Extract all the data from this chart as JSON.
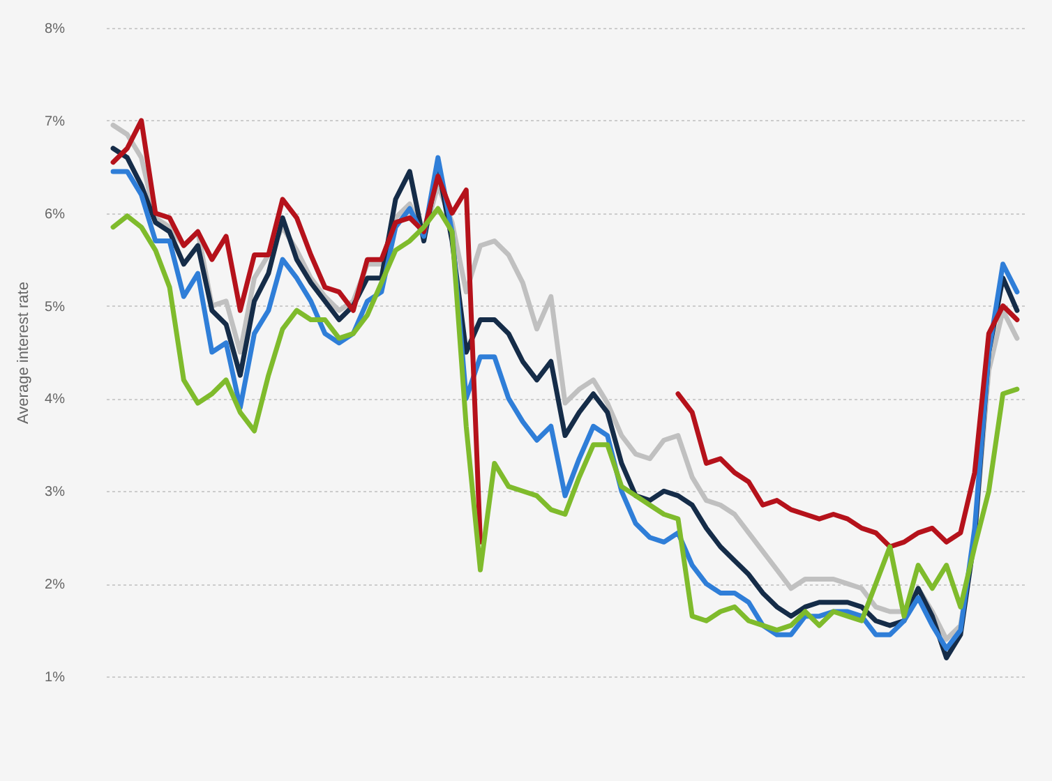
{
  "chart_data": {
    "type": "line",
    "ylabel": "Average interest rate",
    "categories": [
      null,
      null,
      null,
      null,
      null,
      null,
      null,
      null,
      null,
      null,
      null,
      null,
      null,
      null,
      null,
      null,
      null,
      null,
      null,
      null,
      null,
      null,
      null,
      null,
      null,
      null,
      null,
      null,
      null,
      null,
      null,
      null,
      null,
      null,
      null,
      null,
      null,
      null,
      null,
      null,
      null,
      null,
      null,
      null,
      null,
      null,
      null,
      null,
      null,
      null,
      null,
      null,
      null,
      null,
      null,
      null,
      null,
      null,
      null,
      null,
      null,
      null,
      null,
      null,
      null
    ],
    "series": [
      {
        "color": "#c0c0c0",
        "values": [
          6.95,
          6.85,
          6.6,
          5.95,
          5.85,
          5.65,
          5.8,
          5.0,
          5.05,
          4.5,
          5.3,
          5.55,
          5.85,
          5.6,
          5.3,
          5.1,
          4.95,
          5.05,
          5.45,
          5.45,
          5.95,
          6.1,
          5.75,
          6.3,
          5.9,
          5.15,
          5.65,
          5.7,
          5.55,
          5.25,
          4.75,
          5.1,
          3.95,
          4.1,
          4.2,
          3.95,
          3.6,
          3.4,
          3.35,
          3.55,
          3.6,
          3.15,
          2.9,
          2.85,
          2.75,
          2.55,
          2.35,
          2.15,
          1.95,
          2.05,
          2.05,
          2.05,
          2.0,
          1.95,
          1.75,
          1.7,
          1.7,
          1.95,
          1.7,
          1.4,
          1.55,
          2.5,
          4.3,
          4.95,
          4.65
        ]
      },
      {
        "color": "#152c48",
        "values": [
          6.7,
          6.6,
          6.3,
          5.9,
          5.8,
          5.45,
          5.65,
          4.95,
          4.8,
          4.25,
          5.05,
          5.35,
          5.95,
          5.5,
          5.25,
          5.05,
          4.85,
          5.0,
          5.3,
          5.3,
          6.15,
          6.45,
          5.7,
          6.5,
          5.7,
          4.5,
          4.85,
          4.85,
          4.7,
          4.4,
          4.2,
          4.4,
          3.6,
          3.85,
          4.05,
          3.85,
          3.3,
          2.95,
          2.9,
          3.0,
          2.95,
          2.85,
          2.6,
          2.4,
          2.25,
          2.1,
          1.9,
          1.75,
          1.65,
          1.75,
          1.8,
          1.8,
          1.8,
          1.75,
          1.6,
          1.55,
          1.6,
          1.95,
          1.65,
          1.2,
          1.45,
          2.5,
          4.5,
          5.3,
          4.95
        ]
      },
      {
        "color": "#2f7ed8",
        "values": [
          6.45,
          6.45,
          6.2,
          5.7,
          5.7,
          5.1,
          5.35,
          4.5,
          4.6,
          3.9,
          4.7,
          4.95,
          5.5,
          5.3,
          5.05,
          4.7,
          4.6,
          4.7,
          5.05,
          5.15,
          5.85,
          6.05,
          5.75,
          6.6,
          5.8,
          4.0,
          4.45,
          4.45,
          4.0,
          3.75,
          3.55,
          3.7,
          2.95,
          3.35,
          3.7,
          3.6,
          3.0,
          2.65,
          2.5,
          2.45,
          2.55,
          2.2,
          2.0,
          1.9,
          1.9,
          1.8,
          1.55,
          1.45,
          1.45,
          1.65,
          1.65,
          1.7,
          1.7,
          1.65,
          1.45,
          1.45,
          1.6,
          1.85,
          1.55,
          1.3,
          1.5,
          2.6,
          4.5,
          5.45,
          5.15
        ]
      },
      {
        "color": "#b5121b",
        "values": [
          6.55,
          6.7,
          7.0,
          6.0,
          5.95,
          5.65,
          5.8,
          5.5,
          5.75,
          4.95,
          5.55,
          5.55,
          6.15,
          5.95,
          5.55,
          5.2,
          5.15,
          4.95,
          5.5,
          5.5,
          5.9,
          5.95,
          5.8,
          6.4,
          6.0,
          6.25,
          2.45,
          null,
          null,
          null,
          null,
          null,
          null,
          null,
          null,
          null,
          null,
          null,
          null,
          null,
          4.05,
          3.85,
          3.3,
          3.35,
          3.2,
          3.1,
          2.85,
          2.9,
          2.8,
          2.75,
          2.7,
          2.75,
          2.7,
          2.6,
          2.55,
          2.4,
          2.45,
          2.55,
          2.6,
          2.45,
          2.55,
          3.2,
          4.7,
          5.0,
          4.85
        ]
      },
      {
        "color": "#7fbb2c",
        "values": [
          5.85,
          5.97,
          5.85,
          5.6,
          5.2,
          4.2,
          3.95,
          4.05,
          4.2,
          3.85,
          3.65,
          4.25,
          4.75,
          4.95,
          4.85,
          4.85,
          4.65,
          4.7,
          4.9,
          5.25,
          5.6,
          5.7,
          5.85,
          6.05,
          5.8,
          3.7,
          2.15,
          3.3,
          3.05,
          3.0,
          2.95,
          2.8,
          2.75,
          3.15,
          3.5,
          3.5,
          3.05,
          2.95,
          2.85,
          2.75,
          2.7,
          1.65,
          1.6,
          1.7,
          1.75,
          1.6,
          1.55,
          1.5,
          1.55,
          1.7,
          1.55,
          1.7,
          1.65,
          1.6,
          2.0,
          2.4,
          1.65,
          2.2,
          1.95,
          2.2,
          1.75,
          2.4,
          3.0,
          4.05,
          4.1
        ]
      }
    ],
    "ylim": [
      1,
      8
    ],
    "yticks": [
      {
        "value": 1,
        "label": "1%"
      },
      {
        "value": 2,
        "label": "2%"
      },
      {
        "value": 3,
        "label": "3%"
      },
      {
        "value": 4,
        "label": "4%"
      },
      {
        "value": 5,
        "label": "5%"
      },
      {
        "value": 6,
        "label": "6%"
      },
      {
        "value": 7,
        "label": "7%"
      },
      {
        "value": 8,
        "label": "8%"
      }
    ],
    "grid": "y",
    "tick_labels": "y",
    "legend": false,
    "marker": "none",
    "line_style": "solid"
  }
}
